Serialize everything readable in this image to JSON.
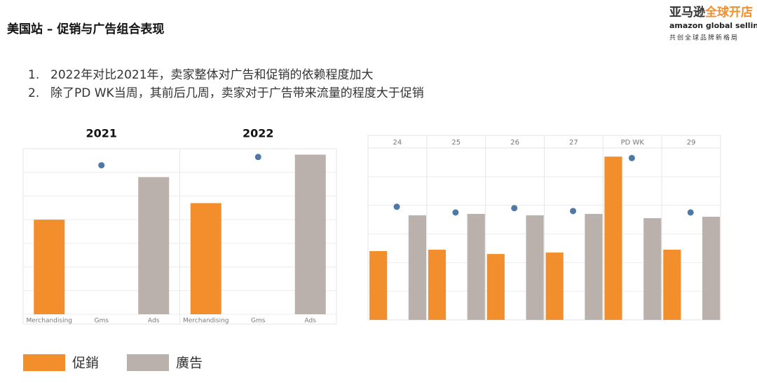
{
  "header": {
    "title": "美国站 – 促销与广告组合表现",
    "logo_cn": "亚马逊",
    "logo_cn2": "全球开店",
    "logo_en": "amazon global selling",
    "logo_slogan": "共创全球品牌新格局"
  },
  "notes": [
    {
      "number": "1.",
      "text": "2022年对比2021年，卖家整体对广告和促销的依赖程度加大"
    },
    {
      "number": "2.",
      "text": "除了PD WK当周，其前后几周，卖家对于广告带来流量的程度大于促销"
    }
  ],
  "chart_data": [
    {
      "type": "bar",
      "panels": [
        "2021",
        "2022"
      ],
      "categories": [
        "Merchandising",
        "Gms",
        "Ads"
      ],
      "colors": [
        "#f28e2b",
        "#4e79a7",
        "#bab0ac"
      ],
      "markers": [
        "bar",
        "dot",
        "bar"
      ],
      "values": [
        [
          80,
          126,
          116
        ],
        [
          94,
          133,
          135
        ]
      ],
      "ylim": [
        0,
        140
      ],
      "yticks": [
        0,
        20,
        40,
        60,
        80,
        100,
        120,
        140
      ],
      "grid": true
    },
    {
      "type": "bar",
      "categories": [
        "24",
        "25",
        "26",
        "27",
        "PD WK",
        "29"
      ],
      "series": [
        {
          "name": "促銷",
          "color": "#f28e2b",
          "values": [
            48,
            49,
            46,
            47,
            114,
            49
          ]
        },
        {
          "name": "廣告",
          "color": "#bab0ac",
          "values": [
            73,
            74,
            73,
            74,
            71,
            72
          ]
        },
        {
          "color": "#4e79a7",
          "marker": "dot",
          "values": [
            79,
            75,
            78,
            76,
            113,
            75
          ]
        }
      ],
      "ylim": [
        0,
        120
      ],
      "yticks": [
        0,
        20,
        40,
        60,
        80,
        100,
        120
      ],
      "grid": true
    }
  ]
}
